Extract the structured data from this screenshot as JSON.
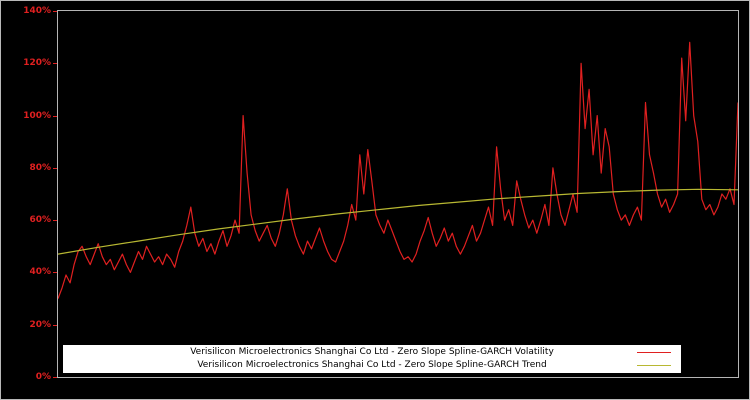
{
  "chart_data": {
    "type": "line",
    "title": "",
    "xlabel": "",
    "ylabel": "",
    "ylim": [
      0,
      140
    ],
    "grid": false,
    "background": "#000000",
    "axis_label_color": "#e02020",
    "legend_position": "bottom-center",
    "yticks": [
      {
        "label": "0%",
        "value": 0
      },
      {
        "label": "20%",
        "value": 20
      },
      {
        "label": "40%",
        "value": 40
      },
      {
        "label": "60%",
        "value": 60
      },
      {
        "label": "80%",
        "value": 80
      },
      {
        "label": "100%",
        "value": 100
      },
      {
        "label": "120%",
        "value": 120
      },
      {
        "label": "140%",
        "value": 140
      }
    ],
    "series": [
      {
        "name": "Verisilicon Microelectronics Shanghai Co Ltd - Zero Slope Spline-GARCH Volatility",
        "color": "#e02020",
        "values": [
          30,
          34,
          39,
          36,
          43,
          48,
          50,
          46,
          43,
          47,
          51,
          46,
          43,
          45,
          41,
          44,
          47,
          43,
          40,
          44,
          48,
          45,
          50,
          47,
          44,
          46,
          43,
          47,
          45,
          42,
          48,
          52,
          58,
          65,
          55,
          50,
          53,
          48,
          51,
          47,
          52,
          56,
          50,
          54,
          60,
          55,
          100,
          78,
          62,
          56,
          52,
          55,
          58,
          53,
          50,
          55,
          62,
          72,
          60,
          54,
          50,
          47,
          52,
          49,
          53,
          57,
          52,
          48,
          45,
          44,
          48,
          52,
          58,
          66,
          60,
          85,
          70,
          87,
          75,
          62,
          58,
          55,
          60,
          56,
          52,
          48,
          45,
          46,
          44,
          47,
          52,
          56,
          61,
          55,
          50,
          53,
          57,
          52,
          55,
          50,
          47,
          50,
          54,
          58,
          52,
          55,
          60,
          65,
          58,
          88,
          72,
          60,
          64,
          58,
          75,
          68,
          62,
          57,
          60,
          55,
          60,
          66,
          58,
          80,
          70,
          62,
          58,
          64,
          70,
          63,
          120,
          95,
          110,
          85,
          100,
          78,
          95,
          88,
          70,
          64,
          60,
          62,
          58,
          62,
          65,
          60,
          105,
          85,
          78,
          70,
          65,
          68,
          63,
          66,
          70,
          122,
          98,
          128,
          100,
          90,
          68,
          64,
          66,
          62,
          65,
          70,
          68,
          72,
          66,
          105
        ]
      },
      {
        "name": "Verisilicon Microelectronics Shanghai Co Ltd - Zero Slope Spline-GARCH Trend",
        "color": "#b8b832",
        "values": [
          47.0,
          49.6,
          52.0,
          54.4,
          56.6,
          58.6,
          60.6,
          62.4,
          64.0,
          65.6,
          66.9,
          68.2,
          69.2,
          70.2,
          70.9,
          71.5,
          71.8,
          71.6
        ]
      }
    ]
  }
}
